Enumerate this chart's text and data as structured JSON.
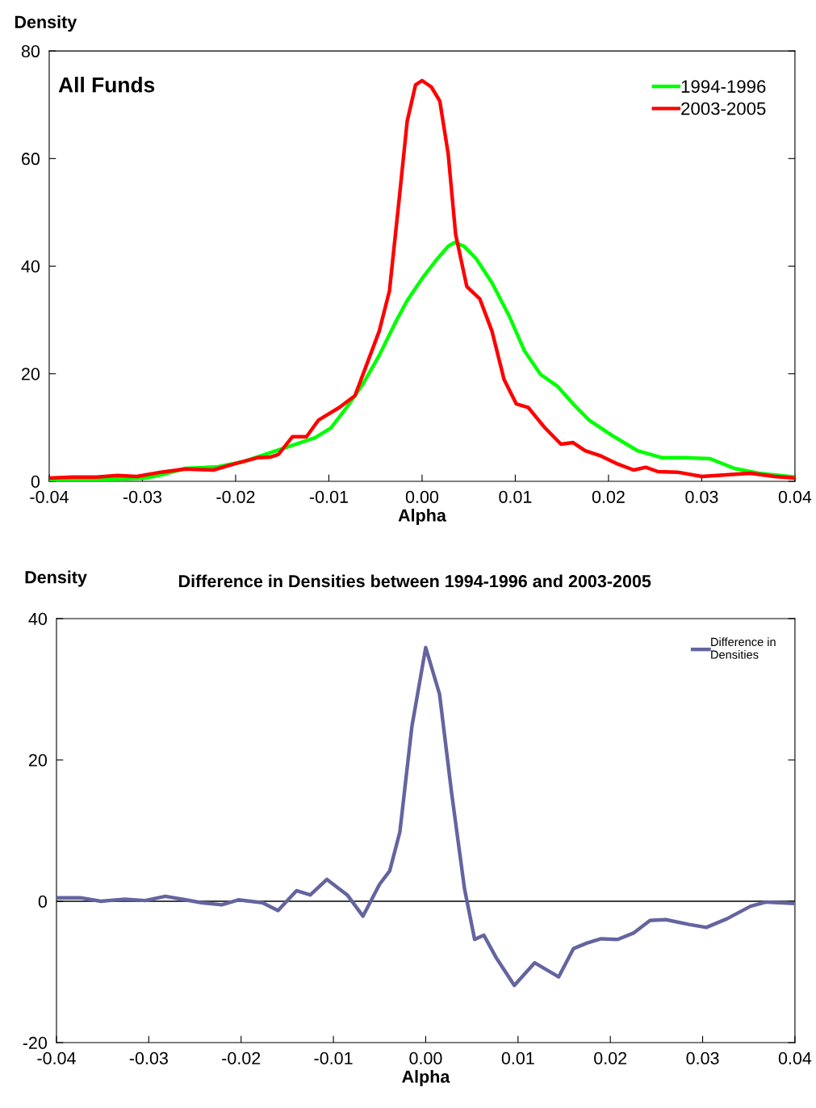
{
  "chart_data": [
    {
      "type": "line",
      "title": "All Funds",
      "xlabel": "Alpha",
      "ylabel": "Density",
      "xlim": [
        -0.04,
        0.04
      ],
      "ylim": [
        0,
        80
      ],
      "xticks": [
        {
          "value": -0.04,
          "label": "-0.04"
        },
        {
          "value": -0.03,
          "label": "-0.03"
        },
        {
          "value": -0.02,
          "label": "-0.02"
        },
        {
          "value": -0.01,
          "label": "-0.01"
        },
        {
          "value": 0,
          "label": "0.00"
        },
        {
          "value": 0.01,
          "label": "0.01"
        },
        {
          "value": 0.02,
          "label": "0.02"
        },
        {
          "value": 0.03,
          "label": "0.03"
        },
        {
          "value": 0.04,
          "label": "0.04"
        }
      ],
      "yticks": [
        0,
        20,
        40,
        60,
        80
      ],
      "grid": false,
      "legend": "top right",
      "marker": "none",
      "line_style": "solid",
      "series": [
        {
          "name": "1994-1996",
          "color": "#00ff00",
          "x": [
            -0.04,
            -0.0349,
            -0.0297,
            -0.028,
            -0.0254,
            -0.0219,
            -0.0193,
            -0.0167,
            -0.0141,
            -0.0115,
            -0.0098,
            -0.0081,
            -0.0063,
            -0.0046,
            -0.0029,
            -0.0016,
            0.0,
            0.0015,
            0.0028,
            0.0035,
            0.0045,
            0.0058,
            0.0075,
            0.0093,
            0.011,
            0.0127,
            0.0145,
            0.0162,
            0.0179,
            0.0205,
            0.0231,
            0.0257,
            0.0283,
            0.0309,
            0.0335,
            0.0361,
            0.04
          ],
          "values": [
            0,
            0.3,
            0.6,
            1.2,
            2.4,
            2.7,
            3.6,
            5.1,
            6.6,
            8.1,
            9.9,
            13.7,
            18.2,
            23.4,
            29.4,
            33.6,
            37.7,
            41.1,
            43.7,
            44.4,
            43.7,
            41.4,
            36.9,
            30.9,
            24.2,
            19.9,
            17.7,
            14.4,
            11.4,
            8.4,
            5.7,
            4.4,
            4.4,
            4.2,
            2.4,
            1.5,
            0.8
          ]
        },
        {
          "name": "2003-2005",
          "color": "#ff0000",
          "x": [
            -0.04,
            -0.0375,
            -0.0349,
            -0.0327,
            -0.0306,
            -0.028,
            -0.0254,
            -0.0224,
            -0.0202,
            -0.0176,
            -0.0163,
            -0.0154,
            -0.0139,
            -0.0124,
            -0.0111,
            -0.0089,
            -0.0072,
            -0.0059,
            -0.0046,
            -0.0035,
            -0.0024,
            -0.0016,
            -0.0007,
            0.0,
            0.001,
            0.0019,
            0.0028,
            0.0036,
            0.0048,
            0.0062,
            0.0075,
            0.0088,
            0.0101,
            0.0114,
            0.0132,
            0.0149,
            0.0162,
            0.0175,
            0.0192,
            0.021,
            0.0227,
            0.024,
            0.0253,
            0.0274,
            0.03,
            0.0326,
            0.0352,
            0.0378,
            0.04
          ],
          "values": [
            0.6,
            0.8,
            0.8,
            1.1,
            0.9,
            1.7,
            2.3,
            2.1,
            3.2,
            4.4,
            4.5,
            5.0,
            8.3,
            8.3,
            11.4,
            13.7,
            15.9,
            21.9,
            27.9,
            35.4,
            53.4,
            66.9,
            73.7,
            74.5,
            73.3,
            70.7,
            60.9,
            45.9,
            36.2,
            33.9,
            27.9,
            18.9,
            14.4,
            13.7,
            9.9,
            6.9,
            7.2,
            5.7,
            4.7,
            3.2,
            2.1,
            2.6,
            1.8,
            1.7,
            0.9,
            1.2,
            1.5,
            0.9,
            0.6
          ]
        }
      ]
    },
    {
      "type": "line",
      "title": "Difference in Densities between 1994-1996 and 2003-2005",
      "xlabel": "Alpha",
      "ylabel": "Density",
      "xlim": [
        -0.04,
        0.04
      ],
      "ylim": [
        -20,
        40
      ],
      "xticks": [
        {
          "value": -0.04,
          "label": "-0.04"
        },
        {
          "value": -0.03,
          "label": "-0.03"
        },
        {
          "value": -0.02,
          "label": "-0.02"
        },
        {
          "value": -0.01,
          "label": "-0.01"
        },
        {
          "value": 0,
          "label": "0.00"
        },
        {
          "value": 0.01,
          "label": "0.01"
        },
        {
          "value": 0.02,
          "label": "0.02"
        },
        {
          "value": 0.03,
          "label": "0.03"
        },
        {
          "value": 0.04,
          "label": "0.04"
        }
      ],
      "yticks": [
        -20,
        0,
        20,
        40
      ],
      "grid": false,
      "legend": "top right",
      "marker": "none",
      "line_style": "solid",
      "ref_lines": [
        {
          "axis": "y",
          "value": 0,
          "color": "#000000"
        }
      ],
      "series": [
        {
          "name": "Difference in\nDensities",
          "color": "#6464a0",
          "x": [
            -0.04,
            -0.0374,
            -0.0352,
            -0.0326,
            -0.0304,
            -0.0282,
            -0.026,
            -0.0243,
            -0.0221,
            -0.0203,
            -0.0177,
            -0.016,
            -0.014,
            -0.0125,
            -0.0107,
            -0.0085,
            -0.0068,
            -0.005,
            -0.0039,
            -0.0028,
            -0.0015,
            0.0,
            0.0015,
            0.0028,
            0.0042,
            0.0053,
            0.0063,
            0.0076,
            0.0096,
            0.0118,
            0.0144,
            0.016,
            0.0175,
            0.019,
            0.0208,
            0.0225,
            0.0243,
            0.026,
            0.0286,
            0.0304,
            0.0326,
            0.0352,
            0.0369,
            0.04
          ],
          "values": [
            0.5,
            0.5,
            0.0,
            0.3,
            0.1,
            0.7,
            0.2,
            -0.2,
            -0.5,
            0.2,
            -0.2,
            -1.3,
            1.5,
            0.9,
            3.1,
            0.9,
            -2.1,
            2.4,
            4.3,
            9.8,
            24.7,
            35.9,
            29.3,
            15.4,
            1.8,
            -5.4,
            -4.8,
            -7.9,
            -11.9,
            -8.7,
            -10.7,
            -6.7,
            -5.9,
            -5.3,
            -5.4,
            -4.5,
            -2.7,
            -2.6,
            -3.3,
            -3.7,
            -2.5,
            -0.7,
            -0.1,
            -0.3
          ]
        }
      ]
    }
  ]
}
